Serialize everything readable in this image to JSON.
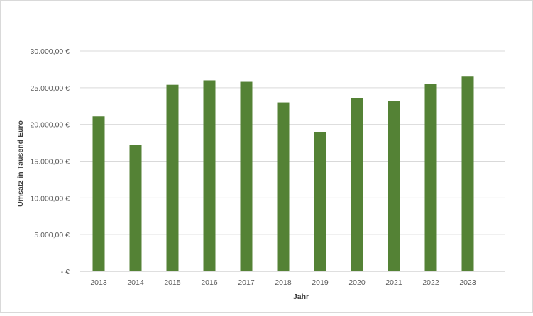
{
  "chart_data": {
    "type": "bar",
    "xlabel": "Jahr",
    "ylabel": "Umsatz in Tausend Euro",
    "categories": [
      "2013",
      "2014",
      "2015",
      "2016",
      "2017",
      "2018",
      "2019",
      "2020",
      "2021",
      "2022",
      "2023"
    ],
    "series": [
      {
        "values": [
          21100,
          17200,
          25400,
          26000,
          25800,
          23000,
          19000,
          23600,
          23200,
          25500,
          26600
        ]
      }
    ],
    "ylim": [
      0,
      30000
    ],
    "y_ticks": [
      0,
      5000,
      10000,
      15000,
      20000,
      25000,
      30000
    ],
    "y_tick_labels": [
      "-  €",
      "5.000,00 €",
      "10.000,00 €",
      "15.000,00 €",
      "20.000,00 €",
      "25.000,00 €",
      "30.000,00 €"
    ],
    "grid": true,
    "colors": {
      "bar": "#548235",
      "grid": "#d9d9d9",
      "axis": "#bfbfbf"
    }
  }
}
